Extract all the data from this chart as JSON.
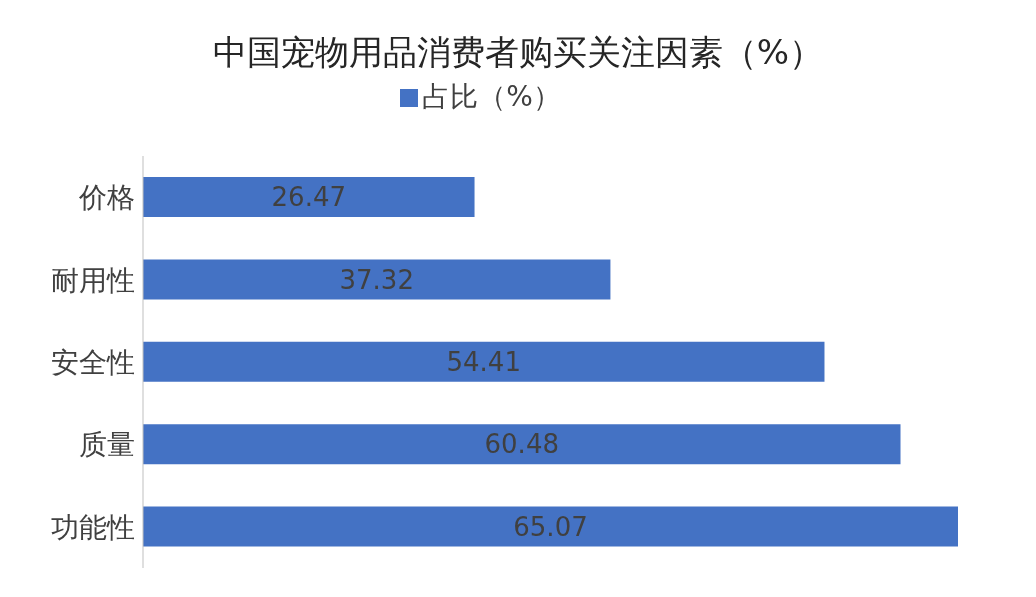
{
  "chart_data": {
    "type": "bar",
    "orientation": "horizontal",
    "title": "中国宠物用品消费者购买关注因素（%）",
    "categories": [
      "价格",
      "耐用性",
      "安全性",
      "质量",
      "功能性"
    ],
    "series": [
      {
        "name": "占比（%）",
        "color": "#4472c4",
        "values": [
          26.47,
          37.32,
          54.41,
          60.48,
          65.07
        ]
      }
    ],
    "data_labels": true,
    "legend": "top",
    "tick_labels": "y"
  }
}
